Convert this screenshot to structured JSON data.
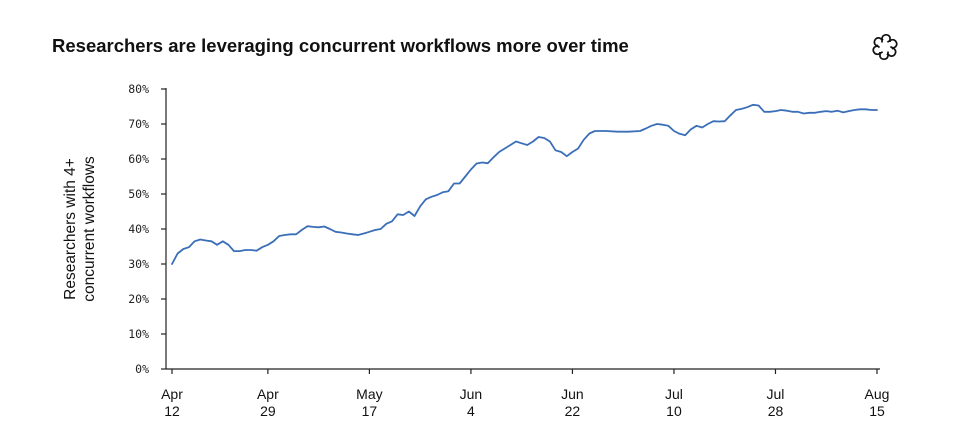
{
  "chart_data": {
    "type": "line",
    "title": "Researchers are leveraging concurrent workflows more over time",
    "ylabel": [
      "Researchers with 4+",
      "concurrent workflows"
    ],
    "xlabel": "",
    "ylim": [
      0,
      80
    ],
    "y_ticks": [
      "0%",
      "10%",
      "20%",
      "30%",
      "40%",
      "50%",
      "60%",
      "70%",
      "80%"
    ],
    "x_range": [
      "2025-04-12",
      "2025-08-15"
    ],
    "x_ticks": [
      {
        "date": "2025-04-12",
        "label": [
          "Apr",
          "12"
        ]
      },
      {
        "date": "2025-04-29",
        "label": [
          "Apr",
          "29"
        ]
      },
      {
        "date": "2025-05-17",
        "label": [
          "May",
          "17"
        ]
      },
      {
        "date": "2025-06-04",
        "label": [
          "Jun",
          "4"
        ]
      },
      {
        "date": "2025-06-22",
        "label": [
          "Jun",
          "22"
        ]
      },
      {
        "date": "2025-07-10",
        "label": [
          "Jul",
          "10"
        ]
      },
      {
        "date": "2025-07-28",
        "label": [
          "Jul",
          "28"
        ]
      },
      {
        "date": "2025-08-15",
        "label": [
          "Aug",
          "15"
        ]
      }
    ],
    "grid": false,
    "legend": "none",
    "series": [
      {
        "color": "#3a6fb8",
        "points": [
          [
            "2025-04-12",
            30.0
          ],
          [
            "2025-04-13",
            33.0
          ],
          [
            "2025-04-14",
            34.3
          ],
          [
            "2025-04-15",
            34.8
          ],
          [
            "2025-04-16",
            36.5
          ],
          [
            "2025-04-17",
            37.0
          ],
          [
            "2025-04-18",
            36.7
          ],
          [
            "2025-04-19",
            36.5
          ],
          [
            "2025-04-20",
            35.5
          ],
          [
            "2025-04-21",
            36.5
          ],
          [
            "2025-04-22",
            35.5
          ],
          [
            "2025-04-23",
            33.7
          ],
          [
            "2025-04-24",
            33.7
          ],
          [
            "2025-04-25",
            34.0
          ],
          [
            "2025-04-26",
            34.0
          ],
          [
            "2025-04-27",
            33.8
          ],
          [
            "2025-04-28",
            34.8
          ],
          [
            "2025-04-29",
            35.5
          ],
          [
            "2025-04-30",
            36.5
          ],
          [
            "2025-05-01",
            38.0
          ],
          [
            "2025-05-02",
            38.3
          ],
          [
            "2025-05-03",
            38.5
          ],
          [
            "2025-05-04",
            38.5
          ],
          [
            "2025-05-05",
            39.7
          ],
          [
            "2025-05-06",
            40.8
          ],
          [
            "2025-05-07",
            40.6
          ],
          [
            "2025-05-08",
            40.5
          ],
          [
            "2025-05-09",
            40.7
          ],
          [
            "2025-05-10",
            40.0
          ],
          [
            "2025-05-11",
            39.2
          ],
          [
            "2025-05-12",
            39.0
          ],
          [
            "2025-05-13",
            38.7
          ],
          [
            "2025-05-14",
            38.5
          ],
          [
            "2025-05-15",
            38.3
          ],
          [
            "2025-05-16",
            38.7
          ],
          [
            "2025-05-17",
            39.2
          ],
          [
            "2025-05-18",
            39.7
          ],
          [
            "2025-05-19",
            40.0
          ],
          [
            "2025-05-20",
            41.5
          ],
          [
            "2025-05-21",
            42.2
          ],
          [
            "2025-05-22",
            44.2
          ],
          [
            "2025-05-23",
            44.0
          ],
          [
            "2025-05-24",
            45.0
          ],
          [
            "2025-05-25",
            43.7
          ],
          [
            "2025-05-26",
            46.5
          ],
          [
            "2025-05-27",
            48.5
          ],
          [
            "2025-05-28",
            49.2
          ],
          [
            "2025-05-29",
            49.7
          ],
          [
            "2025-05-30",
            50.5
          ],
          [
            "2025-05-31",
            50.8
          ],
          [
            "2025-06-01",
            53.0
          ],
          [
            "2025-06-02",
            53.0
          ],
          [
            "2025-06-03",
            55.0
          ],
          [
            "2025-06-04",
            57.0
          ],
          [
            "2025-06-05",
            58.7
          ],
          [
            "2025-06-06",
            59.0
          ],
          [
            "2025-06-07",
            58.8
          ],
          [
            "2025-06-08",
            60.5
          ],
          [
            "2025-06-09",
            62.0
          ],
          [
            "2025-06-10",
            63.0
          ],
          [
            "2025-06-11",
            64.0
          ],
          [
            "2025-06-12",
            65.0
          ],
          [
            "2025-06-13",
            64.5
          ],
          [
            "2025-06-14",
            64.0
          ],
          [
            "2025-06-15",
            65.0
          ],
          [
            "2025-06-16",
            66.3
          ],
          [
            "2025-06-17",
            66.0
          ],
          [
            "2025-06-18",
            65.0
          ],
          [
            "2025-06-19",
            62.5
          ],
          [
            "2025-06-20",
            62.0
          ],
          [
            "2025-06-21",
            60.8
          ],
          [
            "2025-06-22",
            62.0
          ],
          [
            "2025-06-23",
            63.0
          ],
          [
            "2025-06-24",
            65.5
          ],
          [
            "2025-06-25",
            67.3
          ],
          [
            "2025-06-26",
            68.0
          ],
          [
            "2025-06-28",
            68.0
          ],
          [
            "2025-06-30",
            67.8
          ],
          [
            "2025-07-02",
            67.8
          ],
          [
            "2025-07-04",
            68.0
          ],
          [
            "2025-07-05",
            68.7
          ],
          [
            "2025-07-06",
            69.5
          ],
          [
            "2025-07-07",
            70.0
          ],
          [
            "2025-07-08",
            69.8
          ],
          [
            "2025-07-09",
            69.5
          ],
          [
            "2025-07-10",
            68.0
          ],
          [
            "2025-07-11",
            67.2
          ],
          [
            "2025-07-12",
            66.8
          ],
          [
            "2025-07-13",
            68.5
          ],
          [
            "2025-07-14",
            69.5
          ],
          [
            "2025-07-15",
            69.0
          ],
          [
            "2025-07-16",
            70.0
          ],
          [
            "2025-07-17",
            70.8
          ],
          [
            "2025-07-18",
            70.7
          ],
          [
            "2025-07-19",
            70.8
          ],
          [
            "2025-07-20",
            72.5
          ],
          [
            "2025-07-21",
            74.0
          ],
          [
            "2025-07-22",
            74.3
          ],
          [
            "2025-07-23",
            74.8
          ],
          [
            "2025-07-24",
            75.5
          ],
          [
            "2025-07-25",
            75.3
          ],
          [
            "2025-07-26",
            73.5
          ],
          [
            "2025-07-27",
            73.5
          ],
          [
            "2025-07-28",
            73.7
          ],
          [
            "2025-07-29",
            74.0
          ],
          [
            "2025-07-30",
            73.8
          ],
          [
            "2025-07-31",
            73.5
          ],
          [
            "2025-08-01",
            73.5
          ],
          [
            "2025-08-02",
            73.0
          ],
          [
            "2025-08-03",
            73.2
          ],
          [
            "2025-08-04",
            73.2
          ],
          [
            "2025-08-05",
            73.5
          ],
          [
            "2025-08-06",
            73.7
          ],
          [
            "2025-08-07",
            73.5
          ],
          [
            "2025-08-08",
            73.8
          ],
          [
            "2025-08-09",
            73.3
          ],
          [
            "2025-08-10",
            73.7
          ],
          [
            "2025-08-11",
            74.0
          ],
          [
            "2025-08-12",
            74.2
          ],
          [
            "2025-08-13",
            74.2
          ],
          [
            "2025-08-14",
            74.0
          ],
          [
            "2025-08-15",
            74.0
          ]
        ]
      }
    ]
  },
  "logo_icon": "openai-logo-icon"
}
